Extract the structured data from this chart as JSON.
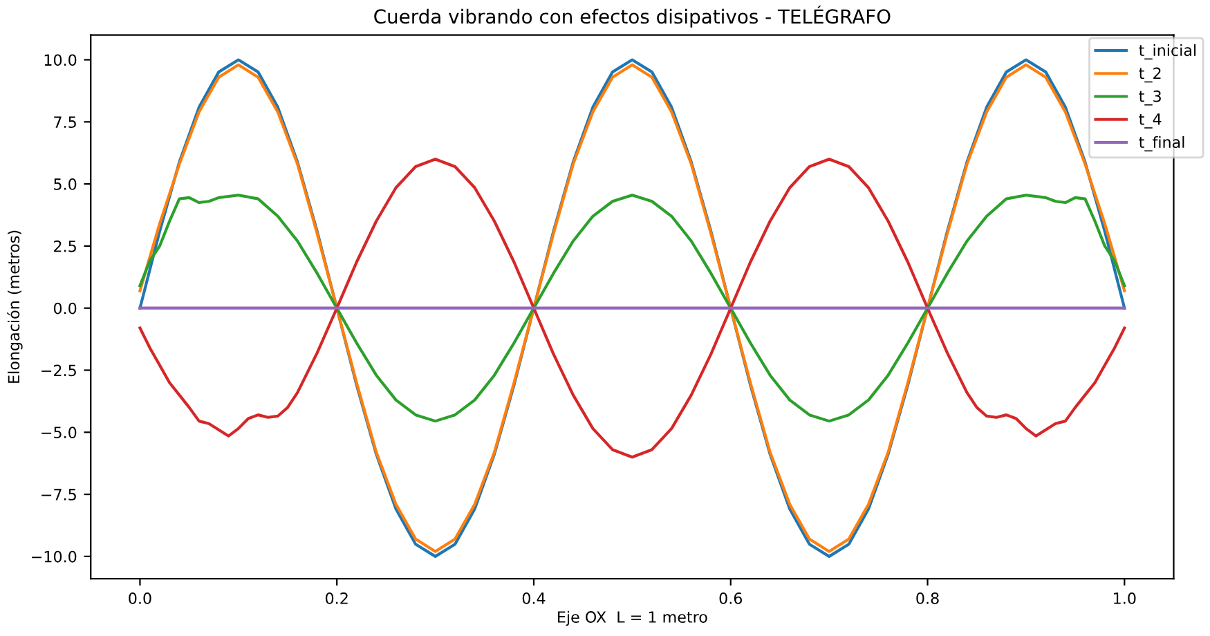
{
  "chart_data": {
    "type": "line",
    "title": "Cuerda vibrando con efectos disipativos - TELÉGRAFO",
    "xlabel": "Eje OX  L = 1 metro",
    "ylabel": "Elongación (metros)",
    "x": [
      0,
      0.02,
      0.04,
      0.06,
      0.08,
      0.1,
      0.12,
      0.14,
      0.16,
      0.18,
      0.2,
      0.22,
      0.24,
      0.26,
      0.28,
      0.3,
      0.32,
      0.34,
      0.36,
      0.38,
      0.4,
      0.42,
      0.44,
      0.46,
      0.48,
      0.5,
      0.52,
      0.54,
      0.56,
      0.58,
      0.6,
      0.62,
      0.64,
      0.66,
      0.68,
      0.7,
      0.72,
      0.74,
      0.76,
      0.78,
      0.8,
      0.82,
      0.84,
      0.86,
      0.88,
      0.9,
      0.92,
      0.94,
      0.96,
      0.98,
      1.0
    ],
    "series": [
      {
        "name": "t_inicial",
        "color": "#1f77b4",
        "values": [
          0,
          3.09,
          5.88,
          8.09,
          9.51,
          10,
          9.51,
          8.09,
          5.88,
          3.09,
          0,
          -3.09,
          -5.88,
          -8.09,
          -9.51,
          -10,
          -9.51,
          -8.09,
          -5.88,
          -3.09,
          0,
          3.09,
          5.88,
          8.09,
          9.51,
          10,
          9.51,
          8.09,
          5.88,
          3.09,
          0,
          -3.09,
          -5.88,
          -8.09,
          -9.51,
          -10,
          -9.51,
          -8.09,
          -5.88,
          -3.09,
          0,
          3.09,
          5.88,
          8.09,
          9.51,
          10,
          9.51,
          8.09,
          5.88,
          3.09,
          0
        ]
      },
      {
        "name": "t_2",
        "color": "#ff7f0e",
        "values": [
          0.7,
          3.4,
          5.8,
          7.9,
          9.3,
          9.8,
          9.3,
          7.9,
          5.8,
          3.0,
          0,
          -3.0,
          -5.8,
          -7.9,
          -9.3,
          -9.8,
          -9.3,
          -7.9,
          -5.8,
          -3.0,
          0,
          3.0,
          5.8,
          7.9,
          9.3,
          9.8,
          9.3,
          7.9,
          5.8,
          3.0,
          0,
          -3.0,
          -5.8,
          -7.9,
          -9.3,
          -9.8,
          -9.3,
          -7.9,
          -5.8,
          -3.0,
          0,
          3.0,
          5.8,
          7.9,
          9.3,
          9.8,
          9.3,
          7.9,
          5.8,
          3.4,
          0.7
        ]
      },
      {
        "name": "t_3",
        "color": "#2ca02c",
        "x": [
          0,
          0.01,
          0.02,
          0.03,
          0.04,
          0.05,
          0.06,
          0.07,
          0.08,
          0.1,
          0.12,
          0.14,
          0.16,
          0.18,
          0.2,
          0.22,
          0.24,
          0.26,
          0.28,
          0.3,
          0.32,
          0.34,
          0.36,
          0.38,
          0.4,
          0.42,
          0.44,
          0.46,
          0.48,
          0.5,
          0.52,
          0.54,
          0.56,
          0.58,
          0.6,
          0.62,
          0.64,
          0.66,
          0.68,
          0.7,
          0.72,
          0.74,
          0.76,
          0.78,
          0.8,
          0.82,
          0.84,
          0.86,
          0.88,
          0.9,
          0.92,
          0.93,
          0.94,
          0.95,
          0.96,
          0.97,
          0.98,
          0.99,
          1.0
        ],
        "values": [
          0.9,
          1.9,
          2.5,
          3.5,
          4.4,
          4.45,
          4.25,
          4.3,
          4.45,
          4.55,
          4.4,
          3.7,
          2.7,
          1.4,
          0,
          -1.4,
          -2.7,
          -3.7,
          -4.3,
          -4.55,
          -4.3,
          -3.7,
          -2.7,
          -1.4,
          0,
          1.4,
          2.7,
          3.7,
          4.3,
          4.55,
          4.3,
          3.7,
          2.7,
          1.4,
          0,
          -1.4,
          -2.7,
          -3.7,
          -4.3,
          -4.55,
          -4.3,
          -3.7,
          -2.7,
          -1.4,
          0,
          1.4,
          2.7,
          3.7,
          4.4,
          4.55,
          4.45,
          4.3,
          4.25,
          4.45,
          4.4,
          3.5,
          2.5,
          1.9,
          0.9
        ]
      },
      {
        "name": "t_4",
        "color": "#d62728",
        "x": [
          0,
          0.01,
          0.02,
          0.03,
          0.04,
          0.05,
          0.06,
          0.07,
          0.08,
          0.09,
          0.1,
          0.11,
          0.12,
          0.13,
          0.14,
          0.15,
          0.16,
          0.17,
          0.18,
          0.19,
          0.2,
          0.22,
          0.24,
          0.26,
          0.28,
          0.3,
          0.32,
          0.34,
          0.36,
          0.38,
          0.4,
          0.42,
          0.44,
          0.46,
          0.48,
          0.5,
          0.52,
          0.54,
          0.56,
          0.58,
          0.6,
          0.62,
          0.64,
          0.66,
          0.68,
          0.7,
          0.72,
          0.74,
          0.76,
          0.78,
          0.8,
          0.81,
          0.82,
          0.83,
          0.84,
          0.85,
          0.86,
          0.87,
          0.88,
          0.89,
          0.9,
          0.91,
          0.92,
          0.93,
          0.94,
          0.95,
          0.96,
          0.97,
          0.98,
          0.99,
          1.0
        ],
        "values": [
          -0.8,
          -1.6,
          -2.3,
          -3.0,
          -3.5,
          -4.0,
          -4.55,
          -4.65,
          -4.9,
          -5.15,
          -4.85,
          -4.45,
          -4.3,
          -4.4,
          -4.35,
          -4.0,
          -3.4,
          -2.6,
          -1.8,
          -0.9,
          0,
          1.85,
          3.5,
          4.85,
          5.7,
          6,
          5.7,
          4.85,
          3.5,
          1.85,
          0,
          -1.85,
          -3.5,
          -4.85,
          -5.7,
          -6,
          -5.7,
          -4.85,
          -3.5,
          -1.85,
          0,
          1.85,
          3.5,
          4.85,
          5.7,
          6,
          5.7,
          4.85,
          3.5,
          1.85,
          0,
          -0.9,
          -1.8,
          -2.6,
          -3.4,
          -4.0,
          -4.35,
          -4.4,
          -4.3,
          -4.45,
          -4.85,
          -5.15,
          -4.9,
          -4.65,
          -4.55,
          -4.0,
          -3.5,
          -3.0,
          -2.3,
          -1.6,
          -0.8
        ]
      },
      {
        "name": "t_final",
        "color": "#9467bd",
        "x": [
          0,
          1.0
        ],
        "values": [
          0,
          0
        ]
      }
    ],
    "xlim": [
      -0.05,
      1.05
    ],
    "ylim": [
      -10.9,
      11.0
    ],
    "xticks": [
      {
        "value": 0,
        "label": "0.0"
      },
      {
        "value": 0.2,
        "label": "0.2"
      },
      {
        "value": 0.4,
        "label": "0.4"
      },
      {
        "value": 0.6,
        "label": "0.6"
      },
      {
        "value": 0.8,
        "label": "0.8"
      },
      {
        "value": 1.0,
        "label": "1.0"
      }
    ],
    "yticks": [
      {
        "value": -10,
        "label": "−10.0"
      },
      {
        "value": -7.5,
        "label": "−7.5"
      },
      {
        "value": -5,
        "label": "−5.0"
      },
      {
        "value": -2.5,
        "label": "−2.5"
      },
      {
        "value": 0,
        "label": "0.0"
      },
      {
        "value": 2.5,
        "label": "2.5"
      },
      {
        "value": 5,
        "label": "5.0"
      },
      {
        "value": 7.5,
        "label": "7.5"
      },
      {
        "value": 10,
        "label": "10.0"
      }
    ],
    "legend": "top right",
    "grid": false
  }
}
